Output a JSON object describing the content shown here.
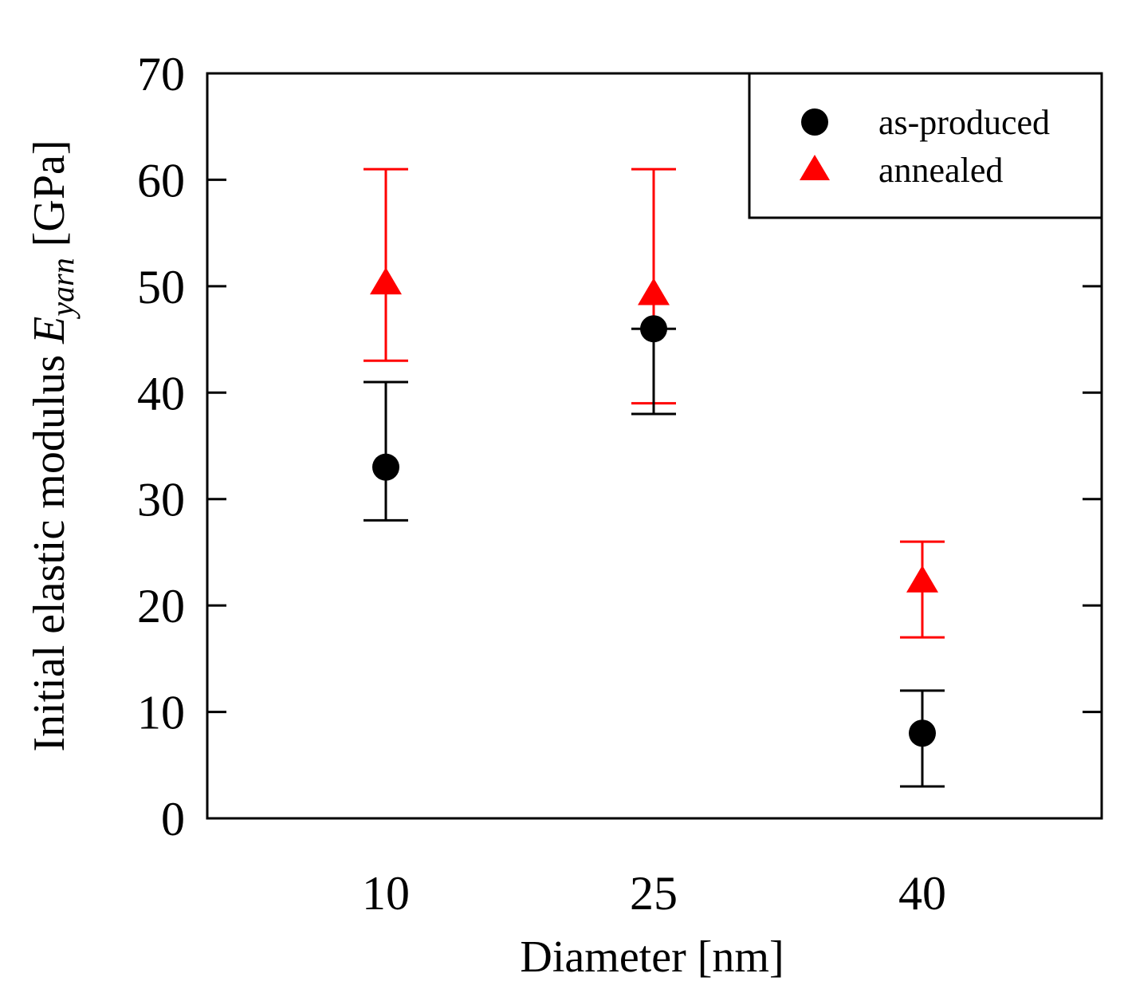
{
  "chart_data": {
    "type": "scatter",
    "title": "",
    "xlabel": "Diameter [nm]",
    "ylabel": {
      "prefix": "Initial elastic modulus ",
      "symbol": "E",
      "subscript": "yarn",
      "suffix": " [GPa]"
    },
    "categories": [
      "10",
      "25",
      "40"
    ],
    "ylim": [
      0,
      70
    ],
    "yticks": [
      0,
      10,
      20,
      30,
      40,
      50,
      60,
      70
    ],
    "legend_position": "top-right",
    "series": [
      {
        "name": "as-produced",
        "marker": "circle",
        "color": "#000000",
        "values": [
          33,
          46,
          8
        ],
        "err_low": [
          28,
          38,
          3
        ],
        "err_high": [
          41,
          46,
          12
        ]
      },
      {
        "name": "annealed",
        "marker": "triangle",
        "color": "#ff0000",
        "values": [
          50.5,
          49.5,
          22.5
        ],
        "err_low": [
          43,
          39,
          17
        ],
        "err_high": [
          61,
          61,
          26
        ]
      }
    ]
  }
}
